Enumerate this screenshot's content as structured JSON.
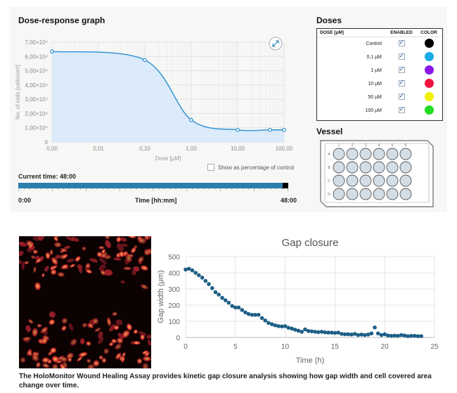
{
  "dose_panel": {
    "title": "Dose-response graph",
    "ylabel": "No. of cells [cells/cm²]",
    "xlabel": "Dose [μM]",
    "y_ticks": [
      "0",
      "1,00×10⁴",
      "2,00×10⁴",
      "3,00×10⁴",
      "4,00×10⁴",
      "5,00×10⁴",
      "6,00×10⁴",
      "7,00×10⁴"
    ],
    "x_ticks": [
      "0,00",
      "0,01",
      "0,10",
      "1,00",
      "10,00",
      "100,00"
    ],
    "show_percentage_label": "Show as percentage of control",
    "current_time_label": "Current time: 48:00",
    "time_start": "0:00",
    "time_axis_label": "Time [hh:mm]",
    "time_end": "48:00",
    "progress_fraction": 0.98
  },
  "doses": {
    "title": "Doses",
    "headers": {
      "dose": "DOSE [μM]",
      "enabled": "ENABLED",
      "color": "COLOR"
    },
    "rows": [
      {
        "label": "Control",
        "enabled": true,
        "color": "#000000"
      },
      {
        "label": "0,1 μM",
        "enabled": true,
        "color": "#19a9e6"
      },
      {
        "label": "1 μM",
        "enabled": true,
        "color": "#8a18e6"
      },
      {
        "label": "10 μM",
        "enabled": true,
        "color": "#f0143c"
      },
      {
        "label": "50 μM",
        "enabled": true,
        "color": "#f0f000"
      },
      {
        "label": "100 μM",
        "enabled": true,
        "color": "#22dd22"
      }
    ]
  },
  "vessel": {
    "title": "Vessel",
    "rows": [
      "A",
      "B",
      "C",
      "D"
    ],
    "cols": [
      "1",
      "2",
      "3",
      "4",
      "5",
      "6"
    ]
  },
  "gap_chart": {
    "title": "Gap closure",
    "xlabel": "Time (h)",
    "ylabel": "Gap width (μm)",
    "x_ticks": [
      "0",
      "5",
      "10",
      "15",
      "20",
      "25"
    ],
    "y_ticks": [
      "0",
      "100",
      "200",
      "300",
      "400",
      "500"
    ]
  },
  "caption": "The HoloMonitor Wound Healing Assay provides kinetic gap closure analysis showing how gap width and cell covered area change over time.",
  "colors": {
    "accent": "#2b7fad",
    "curve": "#2b8fd0",
    "fill": "#d6e9fa",
    "gap_points": "#1d5f86"
  },
  "chart_data": [
    {
      "type": "area",
      "title": "Dose-response graph",
      "xlabel": "Dose [μM]",
      "ylabel": "No. of cells [cells/cm²]",
      "x_scale": "log",
      "x": [
        0.001,
        0.1,
        1,
        10,
        50,
        100
      ],
      "values": [
        63500,
        57500,
        15500,
        8500,
        8500,
        8500
      ],
      "ylim": [
        0,
        70000
      ],
      "grid": true
    },
    {
      "type": "scatter",
      "title": "Gap closure",
      "xlabel": "Time (h)",
      "ylabel": "Gap width (μm)",
      "xlim": [
        0,
        25
      ],
      "ylim": [
        0,
        500
      ],
      "grid": true,
      "x": [
        0,
        0.33,
        0.67,
        1,
        1.33,
        1.67,
        2,
        2.33,
        2.67,
        3,
        3.33,
        3.67,
        4,
        4.33,
        4.67,
        5,
        5.33,
        5.67,
        6,
        6.33,
        6.67,
        7,
        7.33,
        7.67,
        8,
        8.33,
        8.67,
        9,
        9.33,
        9.67,
        10,
        10.33,
        10.67,
        11,
        11.33,
        11.67,
        12,
        12.33,
        12.67,
        13,
        13.33,
        13.67,
        14,
        14.33,
        14.67,
        15,
        15.33,
        15.67,
        16,
        16.33,
        16.67,
        17,
        17.33,
        17.67,
        18,
        18.33,
        18.67,
        19,
        19.33,
        19.67,
        20,
        20.33,
        20.67,
        21,
        21.33,
        21.67,
        22,
        22.33,
        22.67,
        23,
        23.33,
        23.67
      ],
      "values": [
        420,
        425,
        415,
        400,
        385,
        370,
        350,
        330,
        305,
        280,
        265,
        245,
        230,
        215,
        195,
        185,
        185,
        170,
        155,
        145,
        140,
        140,
        140,
        120,
        105,
        90,
        82,
        75,
        70,
        68,
        70,
        60,
        55,
        48,
        42,
        35,
        50,
        40,
        38,
        35,
        33,
        35,
        32,
        30,
        30,
        28,
        30,
        22,
        20,
        20,
        18,
        22,
        15,
        18,
        15,
        18,
        25,
        62,
        25,
        15,
        20,
        12,
        10,
        12,
        10,
        15,
        12,
        8,
        10,
        10,
        8,
        8
      ]
    }
  ]
}
